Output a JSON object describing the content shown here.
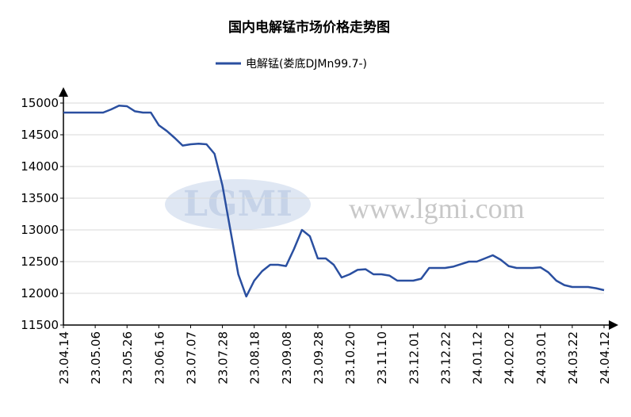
{
  "chart_data": {
    "type": "line",
    "title": "国内电解锰市场价格走势图",
    "watermark": [
      "LGMI",
      "www.lgmi.com"
    ],
    "categories": [
      "23.04.14",
      null,
      null,
      null,
      "23.05.06",
      null,
      null,
      null,
      "23.05.26",
      null,
      null,
      null,
      "23.06.16",
      null,
      null,
      null,
      "23.07.07",
      null,
      null,
      null,
      "23.07.28",
      null,
      null,
      null,
      "23.08.18",
      null,
      null,
      null,
      "23.09.08",
      null,
      null,
      null,
      "23.09.28",
      null,
      null,
      null,
      "23.10.20",
      null,
      null,
      null,
      "23.11.10",
      null,
      null,
      null,
      "23.12.01",
      null,
      null,
      null,
      "23.12.22",
      null,
      null,
      null,
      "24.01.12",
      null,
      null,
      null,
      "24.02.02",
      null,
      null,
      null,
      "24.03.01",
      null,
      null,
      null,
      "24.03.22",
      null,
      null,
      null,
      "24.04.12"
    ],
    "series": [
      {
        "name": "电解锰(娄底DJMn99.7-)",
        "color": "#2a4fa0",
        "values": [
          14850,
          14850,
          14850,
          14850,
          14850,
          14850,
          14900,
          14960,
          14950,
          14870,
          14850,
          14850,
          14650,
          14560,
          14450,
          14330,
          14350,
          14360,
          14350,
          14200,
          13700,
          13000,
          12300,
          11950,
          12200,
          12350,
          12450,
          12450,
          12430,
          12700,
          13000,
          12900,
          12550,
          12550,
          12450,
          12250,
          12300,
          12370,
          12380,
          12300,
          12300,
          12280,
          12200,
          12200,
          12200,
          12230,
          12400,
          12400,
          12400,
          12420,
          12460,
          12500,
          12500,
          12550,
          12600,
          12530,
          12430,
          12400,
          12400,
          12400,
          12410,
          12330,
          12200,
          12130,
          12100,
          12100,
          12100,
          12080,
          12050
        ]
      }
    ],
    "ylim": [
      11500,
      15000
    ],
    "yticks": [
      11500,
      12000,
      12500,
      13000,
      13500,
      14000,
      14500,
      15000
    ],
    "grid": true
  }
}
